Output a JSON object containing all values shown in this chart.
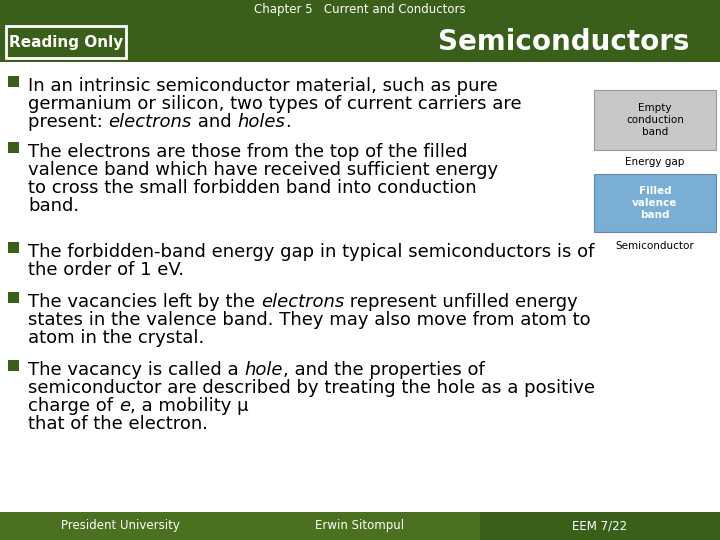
{
  "header_text": "Chapter 5   Current and Conductors",
  "reading_only_text": "Reading Only",
  "title_text": "Semiconductors",
  "footer_left": "President University",
  "footer_center": "Erwin Sitompul",
  "footer_right": "EEM 7/22",
  "bg_color": "#ffffff",
  "dark_green": "#3a5f1a",
  "medium_green": "#4a7020",
  "light_green_footer": "#4a7020",
  "dark_green_footer": "#3a5f1a",
  "diagram_empty_color": "#c8c8c8",
  "diagram_filled_color": "#7aaed4",
  "diagram_border_color": "#6688aa",
  "font_size_body": 13,
  "font_size_header": 8.5,
  "font_size_title": 20,
  "font_size_reading": 11,
  "font_size_footer": 8.5,
  "font_size_diagram": 7.5
}
